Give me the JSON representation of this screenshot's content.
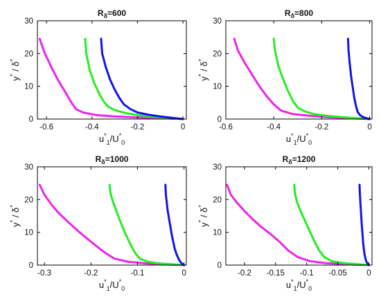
{
  "chart_data": [
    {
      "type": "line",
      "title_base": "R",
      "title_sub": "δ",
      "title_rest": "=600",
      "xlabel": {
        "main": "u",
        "sup": "*",
        "sub": "1",
        "slash": "/U",
        "sup2": "*",
        "sub2": "0"
      },
      "ylabel": {
        "main": "y",
        "sup": "*",
        "slash": " / δ",
        "sup2": "*"
      },
      "xlim": [
        -0.64,
        0.015
      ],
      "ylim": [
        0,
        30
      ],
      "xticks": [
        -0.6,
        -0.4,
        -0.2,
        0
      ],
      "xtick_labels": [
        "-0.6",
        "-0.4",
        "-0.2",
        "0"
      ],
      "yticks": [
        0,
        10,
        20,
        30
      ],
      "ytick_labels": [
        "0",
        "10",
        "20",
        "30"
      ],
      "grid": false,
      "series": [
        {
          "color": "#ee22ee",
          "x": [
            -0.63,
            -0.61,
            -0.58,
            -0.55,
            -0.52,
            -0.49,
            -0.47,
            -0.44,
            -0.38,
            -0.3,
            -0.2,
            -0.1,
            -0.03,
            0
          ],
          "y": [
            24.5,
            20.5,
            16,
            12,
            8.5,
            5,
            3,
            2,
            1.2,
            0.8,
            0.5,
            0.3,
            0.1,
            0
          ]
        },
        {
          "color": "#22ee22",
          "x": [
            -0.43,
            -0.425,
            -0.41,
            -0.39,
            -0.37,
            -0.35,
            -0.33,
            -0.3,
            -0.25,
            -0.2,
            -0.15,
            -0.1,
            -0.05,
            0
          ],
          "y": [
            24.5,
            20,
            15,
            11,
            8,
            5.5,
            3.8,
            2.7,
            1.8,
            1.2,
            0.8,
            0.5,
            0.2,
            0
          ]
        },
        {
          "color": "#1111ee",
          "x": [
            -0.36,
            -0.355,
            -0.34,
            -0.32,
            -0.3,
            -0.28,
            -0.26,
            -0.23,
            -0.2,
            -0.15,
            -0.1,
            -0.05,
            0
          ],
          "y": [
            24.5,
            20,
            16,
            12,
            9,
            6.5,
            4.5,
            3,
            2,
            1.3,
            0.8,
            0.4,
            0
          ]
        }
      ]
    },
    {
      "type": "line",
      "title_base": "R",
      "title_sub": "δ",
      "title_rest": "=800",
      "xlabel": {
        "main": "u",
        "sup": "*",
        "sub": "1",
        "slash": "/U",
        "sup2": "*",
        "sub2": "0"
      },
      "ylabel": {
        "main": "y",
        "sup": "*",
        "slash": " / δ",
        "sup2": "*"
      },
      "xlim": [
        -0.6,
        0.01
      ],
      "ylim": [
        0,
        30
      ],
      "xticks": [
        -0.6,
        -0.4,
        -0.2,
        0
      ],
      "xtick_labels": [
        "-0.6",
        "-0.4",
        "-0.2",
        "0"
      ],
      "yticks": [
        0,
        10,
        20,
        30
      ],
      "ytick_labels": [
        "0",
        "10",
        "20",
        "30"
      ],
      "grid": false,
      "series": [
        {
          "color": "#ee22ee",
          "x": [
            -0.565,
            -0.55,
            -0.52,
            -0.49,
            -0.46,
            -0.43,
            -0.4,
            -0.37,
            -0.32,
            -0.25,
            -0.18,
            -0.1,
            -0.03,
            0
          ],
          "y": [
            24.5,
            21,
            17,
            13.5,
            10,
            7,
            4.5,
            2.6,
            1.5,
            1,
            0.6,
            0.3,
            0.1,
            0
          ]
        },
        {
          "color": "#22ee22",
          "x": [
            -0.4,
            -0.395,
            -0.38,
            -0.36,
            -0.34,
            -0.32,
            -0.3,
            -0.27,
            -0.23,
            -0.18,
            -0.12,
            -0.06,
            0
          ],
          "y": [
            24.5,
            21,
            16,
            12,
            8.5,
            5.5,
            3.5,
            2.3,
            1.5,
            1,
            0.6,
            0.3,
            0
          ]
        },
        {
          "color": "#1111ee",
          "x": [
            -0.09,
            -0.088,
            -0.083,
            -0.077,
            -0.07,
            -0.064,
            -0.057,
            -0.05,
            -0.04,
            -0.03,
            -0.02,
            -0.01,
            0
          ],
          "y": [
            24.5,
            21,
            17,
            13,
            9.5,
            6.5,
            4,
            2.2,
            1.2,
            0.7,
            0.4,
            0.2,
            0
          ]
        }
      ]
    },
    {
      "type": "line",
      "title_base": "R",
      "title_sub": "δ",
      "title_rest": "=1000",
      "xlabel": {
        "main": "u",
        "sup": "*",
        "sub": "1",
        "slash": "/U",
        "sup2": "*",
        "sub2": "0"
      },
      "ylabel": {
        "main": "y",
        "sup": "*",
        "slash": " / δ",
        "sup2": "*"
      },
      "xlim": [
        -0.315,
        0.005
      ],
      "ylim": [
        0,
        30
      ],
      "xticks": [
        -0.3,
        -0.2,
        -0.1,
        0
      ],
      "xtick_labels": [
        "-0.3",
        "-0.2",
        "-0.1",
        "0"
      ],
      "yticks": [
        0,
        10,
        20,
        30
      ],
      "ytick_labels": [
        "0",
        "10",
        "20",
        "30"
      ],
      "grid": false,
      "series": [
        {
          "color": "#ee22ee",
          "x": [
            -0.31,
            -0.3,
            -0.285,
            -0.27,
            -0.25,
            -0.23,
            -0.21,
            -0.19,
            -0.17,
            -0.15,
            -0.12,
            -0.08,
            -0.04,
            0
          ],
          "y": [
            24.5,
            21.5,
            18.5,
            16,
            13.3,
            10.7,
            8.3,
            6,
            3.8,
            2,
            1,
            0.5,
            0.2,
            0
          ]
        },
        {
          "color": "#22ee22",
          "x": [
            -0.16,
            -0.158,
            -0.152,
            -0.144,
            -0.136,
            -0.128,
            -0.12,
            -0.112,
            -0.104,
            -0.095,
            -0.08,
            -0.06,
            -0.03,
            0
          ],
          "y": [
            24.5,
            22,
            19,
            16,
            13,
            10.2,
            7.8,
            5.5,
            3.5,
            2,
            1.1,
            0.6,
            0.3,
            0
          ]
        },
        {
          "color": "#1111ee",
          "x": [
            -0.04,
            -0.039,
            -0.037,
            -0.035,
            -0.032,
            -0.029,
            -0.026,
            -0.023,
            -0.02,
            -0.016,
            -0.012,
            -0.008,
            -0.004,
            0
          ],
          "y": [
            24.5,
            21.5,
            19,
            16.5,
            14,
            11.5,
            9,
            7,
            5,
            3.3,
            2,
            1,
            0.4,
            0
          ]
        }
      ]
    },
    {
      "type": "line",
      "title_base": "R",
      "title_sub": "δ",
      "title_rest": "=1200",
      "xlabel": {
        "main": "u",
        "sup": "*",
        "sub": "1",
        "slash": "/U",
        "sup2": "*",
        "sub2": "0"
      },
      "ylabel": {
        "main": "y",
        "sup": "*",
        "slash": " / δ",
        "sup2": "*"
      },
      "xlim": [
        -0.23,
        0.005
      ],
      "ylim": [
        0,
        30
      ],
      "xticks": [
        -0.2,
        -0.15,
        -0.1,
        -0.05,
        0
      ],
      "xtick_labels": [
        "-0.2",
        "-0.15",
        "-0.1",
        "-0.05",
        "0"
      ],
      "yticks": [
        0,
        10,
        20,
        30
      ],
      "ytick_labels": [
        "0",
        "10",
        "20",
        "30"
      ],
      "grid": false,
      "series": [
        {
          "color": "#ee22ee",
          "x": [
            -0.228,
            -0.222,
            -0.212,
            -0.2,
            -0.187,
            -0.172,
            -0.157,
            -0.143,
            -0.13,
            -0.115,
            -0.095,
            -0.07,
            -0.03,
            0
          ],
          "y": [
            24.5,
            21.5,
            19,
            16.5,
            14,
            11.5,
            9.3,
            7,
            4.5,
            2.5,
            1.2,
            0.6,
            0.2,
            0
          ]
        },
        {
          "color": "#22ee22",
          "x": [
            -0.12,
            -0.119,
            -0.116,
            -0.111,
            -0.105,
            -0.099,
            -0.093,
            -0.087,
            -0.08,
            -0.072,
            -0.06,
            -0.04,
            -0.02,
            0
          ],
          "y": [
            24.5,
            22,
            19.5,
            17,
            14.5,
            12,
            9.5,
            7,
            4.5,
            2.5,
            1.2,
            0.6,
            0.3,
            0
          ]
        },
        {
          "color": "#1111ee",
          "x": [
            -0.015,
            -0.0145,
            -0.0138,
            -0.013,
            -0.0122,
            -0.0113,
            -0.0103,
            -0.0093,
            -0.0082,
            -0.007,
            -0.0055,
            -0.004,
            -0.002,
            0
          ],
          "y": [
            24.5,
            22,
            19.5,
            17,
            14.5,
            12,
            9.5,
            7,
            5,
            3.3,
            2,
            1,
            0.4,
            0
          ]
        }
      ]
    }
  ]
}
